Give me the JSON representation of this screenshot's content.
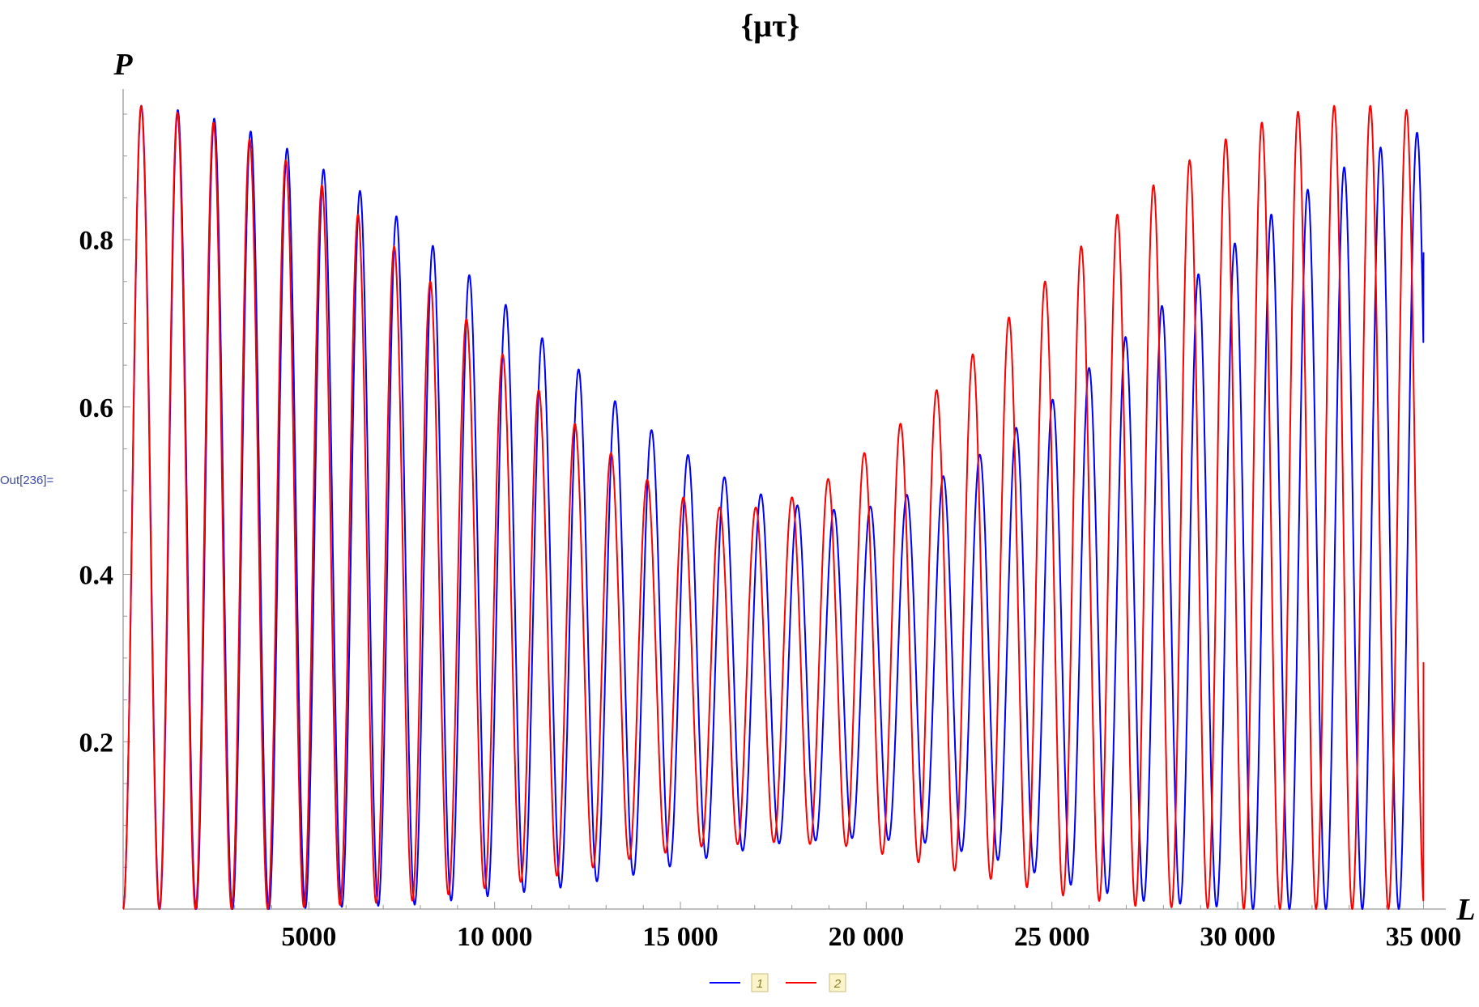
{
  "cell_label": "Out[236]=",
  "chart_data": {
    "type": "line",
    "title": "{μτ}",
    "xlabel": "L",
    "ylabel": "P",
    "xlim": [
      0,
      35600
    ],
    "ylim": [
      0,
      0.98
    ],
    "x_ticks": [
      5000,
      10000,
      15000,
      20000,
      25000,
      30000,
      35000
    ],
    "x_tick_labels": [
      "5000",
      "10 000",
      "15 000",
      "20 000",
      "25 000",
      "30 000",
      "35 000"
    ],
    "y_ticks": [
      0.2,
      0.4,
      0.6,
      0.8
    ],
    "y_tick_labels": [
      "0.2",
      "0.4",
      "0.6",
      "0.8"
    ],
    "x_minor_step": 1000,
    "y_minor_step": 0.05,
    "legend_position": "bottom-center",
    "series": [
      {
        "name": "1",
        "color": "#0000ff",
        "oscillation_period": 981,
        "x_end": 35000,
        "peaks": [
          {
            "x": 490,
            "y": 0.96
          },
          {
            "x": 1460,
            "y": 0.955
          },
          {
            "x": 2430,
            "y": 0.945
          },
          {
            "x": 3400,
            "y": 0.93
          },
          {
            "x": 4370,
            "y": 0.91
          },
          {
            "x": 5350,
            "y": 0.885
          },
          {
            "x": 6320,
            "y": 0.86
          },
          {
            "x": 7300,
            "y": 0.83
          },
          {
            "x": 8270,
            "y": 0.795
          },
          {
            "x": 9250,
            "y": 0.76
          },
          {
            "x": 10230,
            "y": 0.725
          },
          {
            "x": 11210,
            "y": 0.685
          },
          {
            "x": 12180,
            "y": 0.648
          },
          {
            "x": 13160,
            "y": 0.61
          },
          {
            "x": 14140,
            "y": 0.575
          },
          {
            "x": 15120,
            "y": 0.545
          },
          {
            "x": 16100,
            "y": 0.518
          },
          {
            "x": 17080,
            "y": 0.497
          },
          {
            "x": 18060,
            "y": 0.483
          },
          {
            "x": 19040,
            "y": 0.477
          },
          {
            "x": 20020,
            "y": 0.48
          },
          {
            "x": 21000,
            "y": 0.493
          },
          {
            "x": 21980,
            "y": 0.515
          },
          {
            "x": 22960,
            "y": 0.54
          },
          {
            "x": 23940,
            "y": 0.572
          },
          {
            "x": 24920,
            "y": 0.605
          },
          {
            "x": 25900,
            "y": 0.643
          },
          {
            "x": 26880,
            "y": 0.68
          },
          {
            "x": 27860,
            "y": 0.717
          },
          {
            "x": 28840,
            "y": 0.755
          },
          {
            "x": 29820,
            "y": 0.792
          },
          {
            "x": 30800,
            "y": 0.827
          },
          {
            "x": 31780,
            "y": 0.857
          },
          {
            "x": 32760,
            "y": 0.884
          },
          {
            "x": 33740,
            "y": 0.908
          },
          {
            "x": 34720,
            "y": 0.928
          }
        ],
        "troughs": [
          {
            "x": 0,
            "y": 0.0
          },
          {
            "x": 3900,
            "y": 0.0
          },
          {
            "x": 7800,
            "y": 0.005
          },
          {
            "x": 11700,
            "y": 0.025
          },
          {
            "x": 13660,
            "y": 0.04
          },
          {
            "x": 15610,
            "y": 0.06
          },
          {
            "x": 17570,
            "y": 0.078
          },
          {
            "x": 19530,
            "y": 0.085
          },
          {
            "x": 21490,
            "y": 0.08
          },
          {
            "x": 23450,
            "y": 0.06
          },
          {
            "x": 25410,
            "y": 0.03
          },
          {
            "x": 27370,
            "y": 0.01
          },
          {
            "x": 30300,
            "y": 0.0
          },
          {
            "x": 35000,
            "y": 0.0
          }
        ],
        "end_value": 0.785
      },
      {
        "name": "2",
        "color": "#ff0000",
        "oscillation_period": 973,
        "x_end": 35000,
        "peaks": [
          {
            "x": 486,
            "y": 0.96
          },
          {
            "x": 1459,
            "y": 0.952
          },
          {
            "x": 2432,
            "y": 0.94
          },
          {
            "x": 3405,
            "y": 0.92
          },
          {
            "x": 4378,
            "y": 0.895
          },
          {
            "x": 5351,
            "y": 0.865
          },
          {
            "x": 6324,
            "y": 0.83
          },
          {
            "x": 7297,
            "y": 0.792
          },
          {
            "x": 8270,
            "y": 0.75
          },
          {
            "x": 9243,
            "y": 0.705
          },
          {
            "x": 10216,
            "y": 0.663
          },
          {
            "x": 11189,
            "y": 0.62
          },
          {
            "x": 12162,
            "y": 0.58
          },
          {
            "x": 13135,
            "y": 0.545
          },
          {
            "x": 14108,
            "y": 0.513
          },
          {
            "x": 15081,
            "y": 0.492
          },
          {
            "x": 16054,
            "y": 0.48
          },
          {
            "x": 17027,
            "y": 0.48
          },
          {
            "x": 18000,
            "y": 0.492
          },
          {
            "x": 18973,
            "y": 0.514
          },
          {
            "x": 19946,
            "y": 0.545
          },
          {
            "x": 20919,
            "y": 0.58
          },
          {
            "x": 21892,
            "y": 0.62
          },
          {
            "x": 22865,
            "y": 0.663
          },
          {
            "x": 23838,
            "y": 0.707
          },
          {
            "x": 24811,
            "y": 0.75
          },
          {
            "x": 25784,
            "y": 0.792
          },
          {
            "x": 26757,
            "y": 0.83
          },
          {
            "x": 27730,
            "y": 0.865
          },
          {
            "x": 28703,
            "y": 0.895
          },
          {
            "x": 29676,
            "y": 0.92
          },
          {
            "x": 30649,
            "y": 0.94
          },
          {
            "x": 31622,
            "y": 0.953
          },
          {
            "x": 32595,
            "y": 0.96
          },
          {
            "x": 33568,
            "y": 0.96
          },
          {
            "x": 34541,
            "y": 0.955
          }
        ],
        "troughs": [
          {
            "x": 0,
            "y": 0.0
          },
          {
            "x": 3900,
            "y": 0.0
          },
          {
            "x": 7800,
            "y": 0.01
          },
          {
            "x": 11700,
            "y": 0.04
          },
          {
            "x": 13660,
            "y": 0.06
          },
          {
            "x": 15610,
            "y": 0.075
          },
          {
            "x": 17570,
            "y": 0.08
          },
          {
            "x": 19530,
            "y": 0.075
          },
          {
            "x": 21490,
            "y": 0.055
          },
          {
            "x": 23450,
            "y": 0.035
          },
          {
            "x": 25410,
            "y": 0.015
          },
          {
            "x": 27370,
            "y": 0.003
          },
          {
            "x": 30300,
            "y": 0.0
          },
          {
            "x": 35000,
            "y": 0.0
          }
        ],
        "end_value": 0.295
      }
    ]
  }
}
